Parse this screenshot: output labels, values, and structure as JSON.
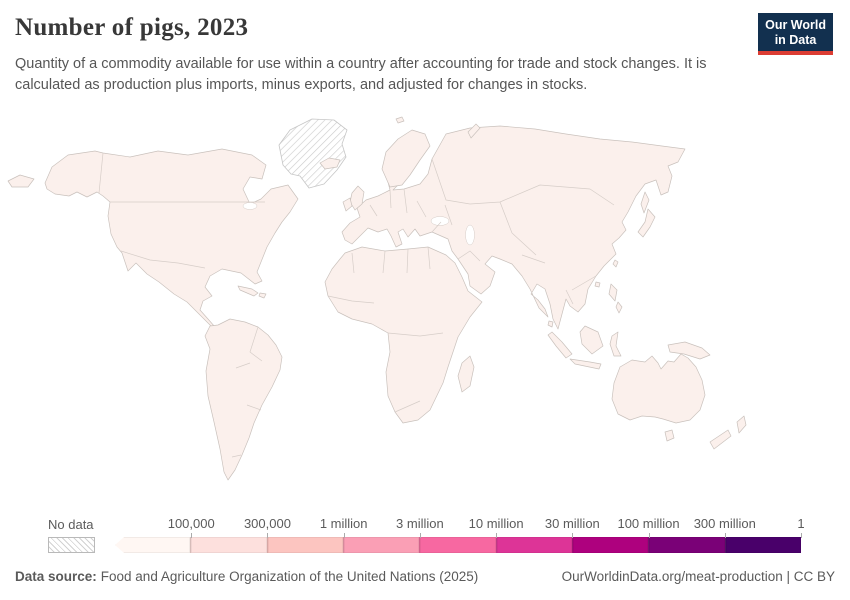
{
  "header": {
    "title": "Number of pigs, 2023",
    "subtitle": "Quantity of a commodity available for use within a country after accounting for trade and stock changes. It is calculated as production plus imports, minus exports, and adjusted for changes in stocks.",
    "logo": {
      "line1": "Our World",
      "line2": "in Data"
    }
  },
  "legend": {
    "no_data_label": "No data",
    "tick_labels": [
      "100,000",
      "300,000",
      "1 million",
      "3 million",
      "10 million",
      "30 million",
      "100 million",
      "300 million",
      "1"
    ],
    "bin_colors": [
      "#fff7f3",
      "#fde0dd",
      "#fcc5c0",
      "#fa9fb5",
      "#f768a1",
      "#dd3497",
      "#ae017e",
      "#7a0177",
      "#49006a"
    ]
  },
  "footer": {
    "source_label": "Data source:",
    "source_text": "Food and Agriculture Organization of the United Nations (2025)",
    "credit_text": "OurWorldinData.org/meat-production | CC BY"
  },
  "colors": {
    "logo_bg": "#12304f",
    "logo_accent": "#dc3d33",
    "land_fill": "#fbf0ec",
    "land_stroke": "#c9c1bc",
    "border_stroke": "#d6cdc8",
    "title_color": "#383838"
  },
  "chart_data": {
    "type": "choropleth_map",
    "title": "Number of pigs, 2023",
    "year": 2023,
    "legend_bin_edges": [
      "100,000",
      "300,000",
      "1 million",
      "3 million",
      "10 million",
      "30 million",
      "100 million",
      "300 million",
      "1"
    ],
    "legend_bin_colors": [
      "#fff7f3",
      "#fde0dd",
      "#fcc5c0",
      "#fa9fb5",
      "#f768a1",
      "#dd3497",
      "#ae017e",
      "#7a0177",
      "#49006a"
    ],
    "legend_end_label": "1",
    "no_data_regions": [
      "Greenland"
    ],
    "observed_state": "All countries on the map are rendered in the lightest legend shade; Greenland is shown with the no-data hatch pattern"
  }
}
